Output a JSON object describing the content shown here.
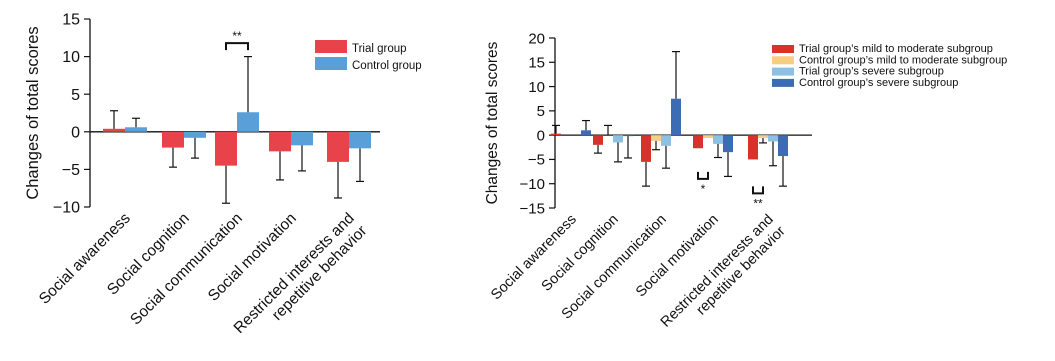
{
  "chart_data": [
    {
      "type": "bar",
      "ylabel": "Changes of total scores",
      "ylim": [
        -10,
        15
      ],
      "yticks": [
        -10,
        -5,
        0,
        5,
        10,
        15
      ],
      "categories": [
        [
          "Social awareness"
        ],
        [
          "Social cognition"
        ],
        [
          "Social communication"
        ],
        [
          "Social motivation"
        ],
        [
          "Restricted interests and",
          "repetitive behavior"
        ]
      ],
      "series": [
        {
          "name": "Trial group",
          "color": "#e8434b",
          "values": [
            0.4,
            -2.1,
            -4.5,
            -2.6,
            -4.0
          ],
          "error": [
            2.4,
            2.6,
            5.0,
            3.8,
            4.8
          ]
        },
        {
          "name": "Control group",
          "color": "#5a9fd8",
          "values": [
            0.6,
            -0.8,
            2.6,
            -1.8,
            -2.2
          ],
          "error": [
            1.2,
            2.7,
            7.4,
            3.4,
            4.4
          ]
        }
      ],
      "significance": [
        {
          "label": "**",
          "category_index": 2,
          "from_series": 0,
          "to_series": 1,
          "at": 11.8,
          "side": "above"
        }
      ],
      "legend_position": "top-right",
      "grid": false
    },
    {
      "type": "bar",
      "ylabel": "Changes of total scores",
      "ylim": [
        -15,
        20
      ],
      "yticks": [
        -15,
        -10,
        -5,
        0,
        5,
        10,
        15,
        20
      ],
      "categories": [
        [
          "Social awareness"
        ],
        [
          "Social cognition"
        ],
        [
          "Social communication"
        ],
        [
          "Social motivation"
        ],
        [
          "Restricted interests and",
          "repetitive behavior"
        ]
      ],
      "series": [
        {
          "name": "Trial group’s mild to moderate subgroup",
          "color": "#d9312c",
          "values": [
            0.3,
            -2.0,
            -5.5,
            -2.7,
            -5.0
          ],
          "error": [
            1.7,
            1.7,
            5.0,
            0,
            0
          ]
        },
        {
          "name": "Control group’s mild to moderate subgroup",
          "color": "#f6cd83",
          "values": [
            0.0,
            0.0,
            -1.2,
            -0.6,
            -0.6
          ],
          "error": [
            0,
            2.0,
            1.8,
            0,
            1.0
          ]
        },
        {
          "name": "Trial group’s severe subgroup",
          "color": "#8dc0e3",
          "values": [
            0.0,
            -1.5,
            -2.2,
            -1.8,
            -1.3
          ],
          "error": [
            0,
            4.0,
            4.6,
            2.8,
            5.0
          ]
        },
        {
          "name": "Control group’s severe subgroup",
          "color": "#3c6cb3",
          "values": [
            1.0,
            -0.2,
            7.5,
            -3.5,
            -4.3
          ],
          "error": [
            2.0,
            4.5,
            9.7,
            5.0,
            6.2
          ]
        }
      ],
      "significance": [
        {
          "label": "*",
          "category_index": 3,
          "from_series": 0,
          "to_series": 1,
          "at": -9.0,
          "side": "below"
        },
        {
          "label": "**",
          "category_index": 4,
          "from_series": 0,
          "to_series": 1,
          "at": -12.0,
          "side": "below"
        }
      ],
      "legend_position": "top-right",
      "grid": false
    }
  ]
}
